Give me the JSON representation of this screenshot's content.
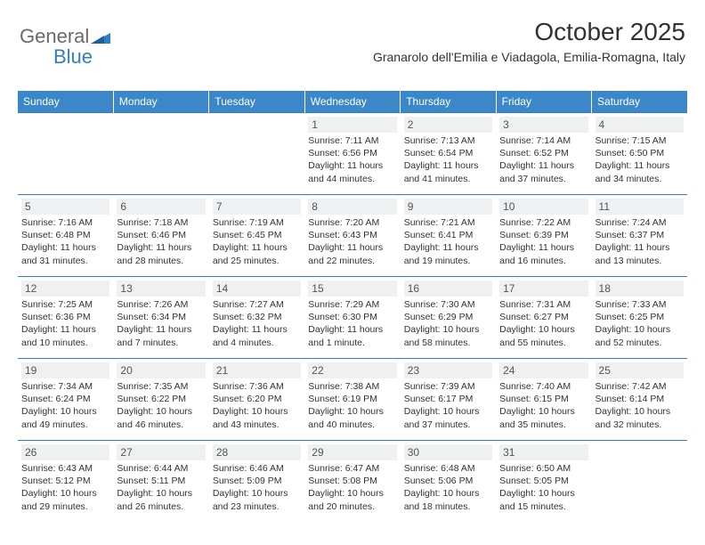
{
  "logo": {
    "text_gray": "General",
    "text_blue": "Blue"
  },
  "header": {
    "month": "October 2025",
    "location": "Granarolo dell'Emilia e Viadagola, Emilia-Romagna, Italy"
  },
  "colors": {
    "header_bg": "#3b87c8",
    "border": "#2f7fc2",
    "daynum_bg": "#eef0f1",
    "logo_gray": "#6b6b6b",
    "logo_blue": "#2f7fc2"
  },
  "weekdays": [
    "Sunday",
    "Monday",
    "Tuesday",
    "Wednesday",
    "Thursday",
    "Friday",
    "Saturday"
  ],
  "weeks": [
    [
      {
        "day": "",
        "text": ""
      },
      {
        "day": "",
        "text": ""
      },
      {
        "day": "",
        "text": ""
      },
      {
        "day": "1",
        "text": "Sunrise: 7:11 AM\nSunset: 6:56 PM\nDaylight: 11 hours and 44 minutes."
      },
      {
        "day": "2",
        "text": "Sunrise: 7:13 AM\nSunset: 6:54 PM\nDaylight: 11 hours and 41 minutes."
      },
      {
        "day": "3",
        "text": "Sunrise: 7:14 AM\nSunset: 6:52 PM\nDaylight: 11 hours and 37 minutes."
      },
      {
        "day": "4",
        "text": "Sunrise: 7:15 AM\nSunset: 6:50 PM\nDaylight: 11 hours and 34 minutes."
      }
    ],
    [
      {
        "day": "5",
        "text": "Sunrise: 7:16 AM\nSunset: 6:48 PM\nDaylight: 11 hours and 31 minutes."
      },
      {
        "day": "6",
        "text": "Sunrise: 7:18 AM\nSunset: 6:46 PM\nDaylight: 11 hours and 28 minutes."
      },
      {
        "day": "7",
        "text": "Sunrise: 7:19 AM\nSunset: 6:45 PM\nDaylight: 11 hours and 25 minutes."
      },
      {
        "day": "8",
        "text": "Sunrise: 7:20 AM\nSunset: 6:43 PM\nDaylight: 11 hours and 22 minutes."
      },
      {
        "day": "9",
        "text": "Sunrise: 7:21 AM\nSunset: 6:41 PM\nDaylight: 11 hours and 19 minutes."
      },
      {
        "day": "10",
        "text": "Sunrise: 7:22 AM\nSunset: 6:39 PM\nDaylight: 11 hours and 16 minutes."
      },
      {
        "day": "11",
        "text": "Sunrise: 7:24 AM\nSunset: 6:37 PM\nDaylight: 11 hours and 13 minutes."
      }
    ],
    [
      {
        "day": "12",
        "text": "Sunrise: 7:25 AM\nSunset: 6:36 PM\nDaylight: 11 hours and 10 minutes."
      },
      {
        "day": "13",
        "text": "Sunrise: 7:26 AM\nSunset: 6:34 PM\nDaylight: 11 hours and 7 minutes."
      },
      {
        "day": "14",
        "text": "Sunrise: 7:27 AM\nSunset: 6:32 PM\nDaylight: 11 hours and 4 minutes."
      },
      {
        "day": "15",
        "text": "Sunrise: 7:29 AM\nSunset: 6:30 PM\nDaylight: 11 hours and 1 minute."
      },
      {
        "day": "16",
        "text": "Sunrise: 7:30 AM\nSunset: 6:29 PM\nDaylight: 10 hours and 58 minutes."
      },
      {
        "day": "17",
        "text": "Sunrise: 7:31 AM\nSunset: 6:27 PM\nDaylight: 10 hours and 55 minutes."
      },
      {
        "day": "18",
        "text": "Sunrise: 7:33 AM\nSunset: 6:25 PM\nDaylight: 10 hours and 52 minutes."
      }
    ],
    [
      {
        "day": "19",
        "text": "Sunrise: 7:34 AM\nSunset: 6:24 PM\nDaylight: 10 hours and 49 minutes."
      },
      {
        "day": "20",
        "text": "Sunrise: 7:35 AM\nSunset: 6:22 PM\nDaylight: 10 hours and 46 minutes."
      },
      {
        "day": "21",
        "text": "Sunrise: 7:36 AM\nSunset: 6:20 PM\nDaylight: 10 hours and 43 minutes."
      },
      {
        "day": "22",
        "text": "Sunrise: 7:38 AM\nSunset: 6:19 PM\nDaylight: 10 hours and 40 minutes."
      },
      {
        "day": "23",
        "text": "Sunrise: 7:39 AM\nSunset: 6:17 PM\nDaylight: 10 hours and 37 minutes."
      },
      {
        "day": "24",
        "text": "Sunrise: 7:40 AM\nSunset: 6:15 PM\nDaylight: 10 hours and 35 minutes."
      },
      {
        "day": "25",
        "text": "Sunrise: 7:42 AM\nSunset: 6:14 PM\nDaylight: 10 hours and 32 minutes."
      }
    ],
    [
      {
        "day": "26",
        "text": "Sunrise: 6:43 AM\nSunset: 5:12 PM\nDaylight: 10 hours and 29 minutes."
      },
      {
        "day": "27",
        "text": "Sunrise: 6:44 AM\nSunset: 5:11 PM\nDaylight: 10 hours and 26 minutes."
      },
      {
        "day": "28",
        "text": "Sunrise: 6:46 AM\nSunset: 5:09 PM\nDaylight: 10 hours and 23 minutes."
      },
      {
        "day": "29",
        "text": "Sunrise: 6:47 AM\nSunset: 5:08 PM\nDaylight: 10 hours and 20 minutes."
      },
      {
        "day": "30",
        "text": "Sunrise: 6:48 AM\nSunset: 5:06 PM\nDaylight: 10 hours and 18 minutes."
      },
      {
        "day": "31",
        "text": "Sunrise: 6:50 AM\nSunset: 5:05 PM\nDaylight: 10 hours and 15 minutes."
      },
      {
        "day": "",
        "text": ""
      }
    ]
  ]
}
